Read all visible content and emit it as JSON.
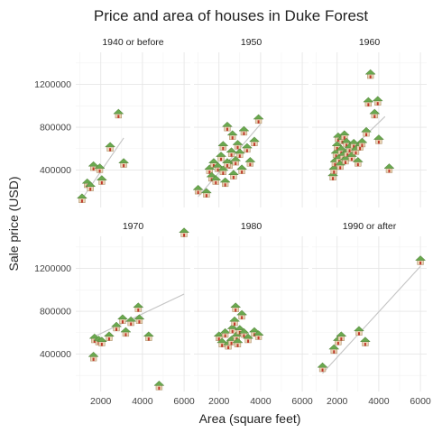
{
  "chart_data": {
    "type": "scatter",
    "title": "Price and area of houses in Duke Forest",
    "xlabel": "Area (square feet)",
    "ylabel": "Sale price (USD)",
    "xlim": [
      800,
      6300
    ],
    "ylim": [
      50000,
      1500000
    ],
    "x_ticks": [
      2000,
      4000,
      6000
    ],
    "y_ticks": [
      400000,
      800000,
      1200000
    ],
    "grid": true,
    "point_marker": "house-icon",
    "colors": {
      "roof": "#6aa84f",
      "wall": "#e9d3b4",
      "door": "#c0392b",
      "trend": "#c4c4c4"
    },
    "panels": [
      {
        "label": "1940 or before",
        "points": [
          [
            1100,
            130000
          ],
          [
            1350,
            270000
          ],
          [
            1500,
            240000
          ],
          [
            1650,
            430000
          ],
          [
            2050,
            300000
          ],
          [
            2450,
            610000
          ],
          [
            2850,
            920000
          ],
          [
            3100,
            460000
          ],
          [
            1950,
            410000
          ]
        ],
        "trend": [
          [
            1100,
            130000
          ],
          [
            3100,
            700000
          ]
        ]
      },
      {
        "label": "1950",
        "points": [
          [
            1000,
            210000
          ],
          [
            1400,
            180000
          ],
          [
            1550,
            400000
          ],
          [
            1650,
            330000
          ],
          [
            1750,
            460000
          ],
          [
            1850,
            300000
          ],
          [
            1950,
            420000
          ],
          [
            2100,
            520000
          ],
          [
            2200,
            390000
          ],
          [
            2200,
            620000
          ],
          [
            2300,
            280000
          ],
          [
            2400,
            800000
          ],
          [
            2500,
            450000
          ],
          [
            2600,
            560000
          ],
          [
            2700,
            350000
          ],
          [
            2800,
            480000
          ],
          [
            2900,
            630000
          ],
          [
            3000,
            550000
          ],
          [
            3100,
            400000
          ],
          [
            3200,
            760000
          ],
          [
            3350,
            600000
          ],
          [
            3500,
            470000
          ],
          [
            3700,
            660000
          ],
          [
            3900,
            870000
          ],
          [
            2400,
            460000
          ],
          [
            2650,
            720000
          ]
        ],
        "trend": [
          [
            1000,
            150000
          ],
          [
            4000,
            830000
          ]
        ]
      },
      {
        "label": "1960",
        "points": [
          [
            1800,
            340000
          ],
          [
            1850,
            400000
          ],
          [
            1900,
            470000
          ],
          [
            1950,
            550000
          ],
          [
            2000,
            620000
          ],
          [
            2050,
            700000
          ],
          [
            2100,
            500000
          ],
          [
            2150,
            440000
          ],
          [
            2200,
            580000
          ],
          [
            2250,
            680000
          ],
          [
            2300,
            530000
          ],
          [
            2350,
            720000
          ],
          [
            2400,
            490000
          ],
          [
            2450,
            650000
          ],
          [
            2500,
            560000
          ],
          [
            2600,
            600000
          ],
          [
            2700,
            520000
          ],
          [
            2800,
            640000
          ],
          [
            2900,
            580000
          ],
          [
            3000,
            470000
          ],
          [
            3100,
            620000
          ],
          [
            3200,
            650000
          ],
          [
            3400,
            750000
          ],
          [
            3500,
            1030000
          ],
          [
            3600,
            1290000
          ],
          [
            3800,
            920000
          ],
          [
            3950,
            1040000
          ],
          [
            4000,
            680000
          ],
          [
            4500,
            410000
          ]
        ],
        "trend": [
          [
            1800,
            430000
          ],
          [
            4300,
            900000
          ]
        ]
      },
      {
        "label": "1970",
        "points": [
          [
            1650,
            370000
          ],
          [
            1700,
            540000
          ],
          [
            1900,
            520000
          ],
          [
            2050,
            510000
          ],
          [
            2400,
            560000
          ],
          [
            2750,
            650000
          ],
          [
            3050,
            720000
          ],
          [
            3200,
            600000
          ],
          [
            3450,
            700000
          ],
          [
            3800,
            830000
          ],
          [
            3850,
            720000
          ],
          [
            4300,
            560000
          ],
          [
            4800,
            100000
          ],
          [
            6000,
            1530000
          ]
        ],
        "trend": [
          [
            1650,
            560000
          ],
          [
            6000,
            960000
          ]
        ]
      },
      {
        "label": "1980",
        "points": [
          [
            2000,
            560000
          ],
          [
            2150,
            500000
          ],
          [
            2300,
            590000
          ],
          [
            2450,
            480000
          ],
          [
            2600,
            520000
          ],
          [
            2650,
            630000
          ],
          [
            2750,
            700000
          ],
          [
            2800,
            830000
          ],
          [
            2850,
            560000
          ],
          [
            2900,
            500000
          ],
          [
            3000,
            620000
          ],
          [
            3100,
            760000
          ],
          [
            3200,
            590000
          ],
          [
            3400,
            540000
          ],
          [
            3700,
            600000
          ],
          [
            3900,
            570000
          ]
        ],
        "trend": null
      },
      {
        "label": "1990 or after",
        "points": [
          [
            1300,
            270000
          ],
          [
            1850,
            440000
          ],
          [
            2050,
            520000
          ],
          [
            2200,
            560000
          ],
          [
            3050,
            610000
          ],
          [
            3350,
            510000
          ],
          [
            6000,
            1270000
          ]
        ],
        "trend": [
          [
            1300,
            220000
          ],
          [
            6000,
            1220000
          ]
        ]
      }
    ]
  }
}
